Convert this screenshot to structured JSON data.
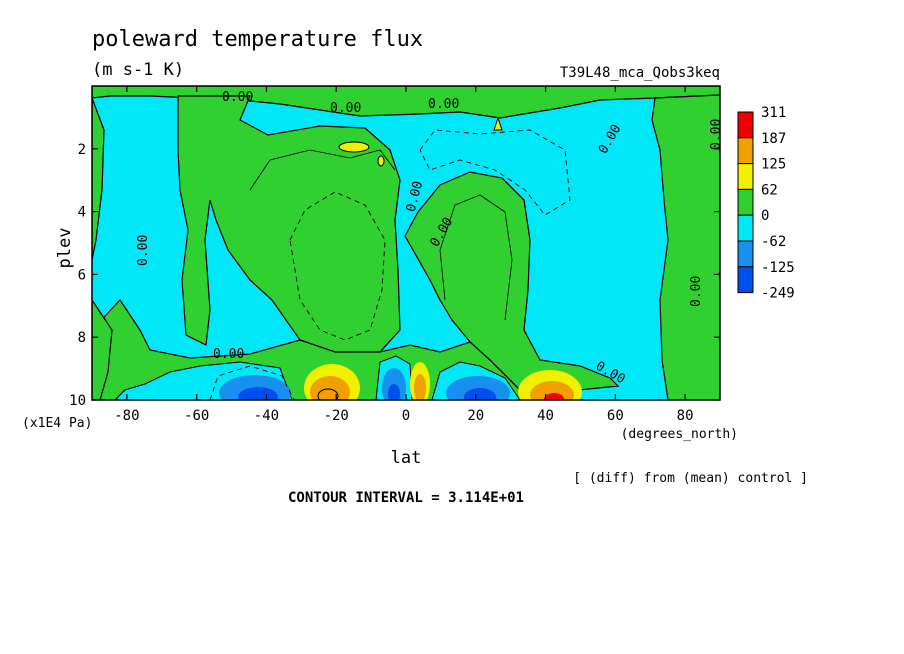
{
  "chart_data": {
    "type": "heatmap",
    "title": "poleward temperature flux",
    "units": "(m s-1 K)",
    "run_label": "T39L48_mca_Qobs3keq",
    "xlabel": "lat",
    "x_units": "(degrees_north)",
    "ylabel": "plev",
    "y_units": "(x1E4 Pa)",
    "xlim": [
      -90,
      90
    ],
    "ylim": [
      10,
      0
    ],
    "x_ticks": [
      -80,
      -60,
      -40,
      -20,
      0,
      20,
      40,
      60,
      80
    ],
    "y_ticks": [
      2,
      4,
      6,
      8,
      10
    ],
    "contour_interval": "CONTOUR INTERVAL = 3.114E+01",
    "comparison_note": "[ (diff) from (mean) control ]",
    "contour_labels": [
      "0.00",
      "0.00",
      "0.00",
      "0.00",
      "0.00",
      "0.00",
      "0.00",
      "0.00",
      "0.00",
      "0.00",
      "0.00"
    ],
    "legend": {
      "levels": [
        "311",
        "187",
        "125",
        "62",
        "0",
        "-62",
        "-125",
        "-249"
      ],
      "colors": [
        "#f00000",
        "#f0a000",
        "#f0f000",
        "#30d030",
        "#00e8f8",
        "#1890f0",
        "#0050f0"
      ]
    },
    "features": [
      {
        "lat": 42,
        "plev": 9.7,
        "value": 311,
        "sign": "positive"
      },
      {
        "lat": -25,
        "plev": 9.6,
        "value": 187,
        "sign": "positive"
      },
      {
        "lat": 4,
        "plev": 9.5,
        "value": 187,
        "sign": "positive"
      },
      {
        "lat": -43,
        "plev": 9.7,
        "value": -249,
        "sign": "negative"
      },
      {
        "lat": 22,
        "plev": 9.7,
        "value": -249,
        "sign": "negative"
      },
      {
        "lat": -4,
        "plev": 9.6,
        "value": -125,
        "sign": "negative"
      },
      {
        "lat": -13,
        "plev": 1.9,
        "value": 62,
        "sign": "positive"
      },
      {
        "lat": -20,
        "plev": 5.0,
        "value": -62,
        "sign": "negative"
      },
      {
        "lat": 25,
        "plev": 5.0,
        "value": 62,
        "sign": "positive"
      }
    ]
  }
}
